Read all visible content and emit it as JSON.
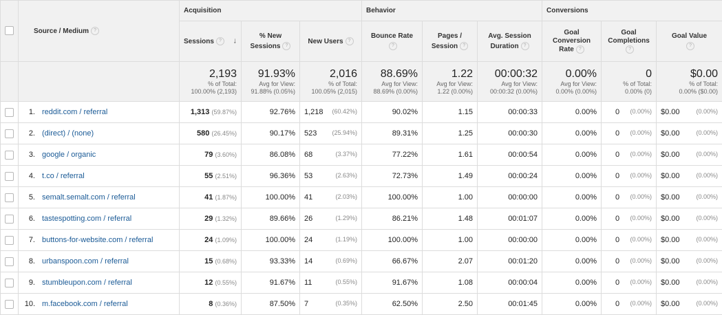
{
  "headers": {
    "source_medium": "Source / Medium",
    "groups": {
      "acquisition": "Acquisition",
      "behavior": "Behavior",
      "conversions": "Conversions"
    },
    "columns": {
      "sessions": "Sessions",
      "pct_new_sessions_1": "% New",
      "pct_new_sessions_2": "Sessions",
      "new_users": "New Users",
      "bounce_rate": "Bounce Rate",
      "pages_session_1": "Pages /",
      "pages_session_2": "Session",
      "avg_duration_1": "Avg. Session",
      "avg_duration_2": "Duration",
      "goal_conv_1": "Goal",
      "goal_conv_2": "Conversion",
      "goal_conv_3": "Rate",
      "goal_comp_1": "Goal",
      "goal_comp_2": "Completions",
      "goal_value": "Goal Value"
    },
    "help_glyph": "?",
    "sort_glyph": "↓"
  },
  "totals": {
    "sessions": {
      "value": "2,193",
      "sub1": "% of Total:",
      "sub2": "100.00% (2,193)"
    },
    "pct_new": {
      "value": "91.93%",
      "sub1": "Avg for View:",
      "sub2": "91.88% (0.05%)"
    },
    "new_users": {
      "value": "2,016",
      "sub1": "% of Total:",
      "sub2": "100.05% (2,015)"
    },
    "bounce": {
      "value": "88.69%",
      "sub1": "Avg for View:",
      "sub2": "88.69% (0.00%)"
    },
    "pages": {
      "value": "1.22",
      "sub1": "Avg for View:",
      "sub2": "1.22 (0.00%)"
    },
    "duration": {
      "value": "00:00:32",
      "sub1": "Avg for View:",
      "sub2": "00:00:32 (0.00%)"
    },
    "conv_rate": {
      "value": "0.00%",
      "sub1": "Avg for View:",
      "sub2": "0.00% (0.00%)"
    },
    "completions": {
      "value": "0",
      "sub1": "% of Total:",
      "sub2": "0.00% (0)"
    },
    "goal_value": {
      "value": "$0.00",
      "sub1": "% of Total:",
      "sub2": "0.00% ($0.00)"
    }
  },
  "rows": [
    {
      "idx": "1.",
      "source": "reddit.com / referral",
      "sessions": "1,313",
      "sessions_pct": "(59.87%)",
      "pct_new": "92.76%",
      "new_users": "1,218",
      "new_users_pct": "(60.42%)",
      "bounce": "90.02%",
      "pages": "1.15",
      "duration": "00:00:33",
      "conv_rate": "0.00%",
      "completions": "0",
      "completions_pct": "(0.00%)",
      "goal_value": "$0.00",
      "goal_value_pct": "(0.00%)"
    },
    {
      "idx": "2.",
      "source": "(direct) / (none)",
      "sessions": "580",
      "sessions_pct": "(26.45%)",
      "pct_new": "90.17%",
      "new_users": "523",
      "new_users_pct": "(25.94%)",
      "bounce": "89.31%",
      "pages": "1.25",
      "duration": "00:00:30",
      "conv_rate": "0.00%",
      "completions": "0",
      "completions_pct": "(0.00%)",
      "goal_value": "$0.00",
      "goal_value_pct": "(0.00%)"
    },
    {
      "idx": "3.",
      "source": "google / organic",
      "sessions": "79",
      "sessions_pct": "(3.60%)",
      "pct_new": "86.08%",
      "new_users": "68",
      "new_users_pct": "(3.37%)",
      "bounce": "77.22%",
      "pages": "1.61",
      "duration": "00:00:54",
      "conv_rate": "0.00%",
      "completions": "0",
      "completions_pct": "(0.00%)",
      "goal_value": "$0.00",
      "goal_value_pct": "(0.00%)"
    },
    {
      "idx": "4.",
      "source": "t.co / referral",
      "sessions": "55",
      "sessions_pct": "(2.51%)",
      "pct_new": "96.36%",
      "new_users": "53",
      "new_users_pct": "(2.63%)",
      "bounce": "72.73%",
      "pages": "1.49",
      "duration": "00:00:24",
      "conv_rate": "0.00%",
      "completions": "0",
      "completions_pct": "(0.00%)",
      "goal_value": "$0.00",
      "goal_value_pct": "(0.00%)"
    },
    {
      "idx": "5.",
      "source": "semalt.semalt.com / referral",
      "sessions": "41",
      "sessions_pct": "(1.87%)",
      "pct_new": "100.00%",
      "new_users": "41",
      "new_users_pct": "(2.03%)",
      "bounce": "100.00%",
      "pages": "1.00",
      "duration": "00:00:00",
      "conv_rate": "0.00%",
      "completions": "0",
      "completions_pct": "(0.00%)",
      "goal_value": "$0.00",
      "goal_value_pct": "(0.00%)"
    },
    {
      "idx": "6.",
      "source": "tastespotting.com / referral",
      "sessions": "29",
      "sessions_pct": "(1.32%)",
      "pct_new": "89.66%",
      "new_users": "26",
      "new_users_pct": "(1.29%)",
      "bounce": "86.21%",
      "pages": "1.48",
      "duration": "00:01:07",
      "conv_rate": "0.00%",
      "completions": "0",
      "completions_pct": "(0.00%)",
      "goal_value": "$0.00",
      "goal_value_pct": "(0.00%)"
    },
    {
      "idx": "7.",
      "source": "buttons-for-website.com / referral",
      "sessions": "24",
      "sessions_pct": "(1.09%)",
      "pct_new": "100.00%",
      "new_users": "24",
      "new_users_pct": "(1.19%)",
      "bounce": "100.00%",
      "pages": "1.00",
      "duration": "00:00:00",
      "conv_rate": "0.00%",
      "completions": "0",
      "completions_pct": "(0.00%)",
      "goal_value": "$0.00",
      "goal_value_pct": "(0.00%)"
    },
    {
      "idx": "8.",
      "source": "urbanspoon.com / referral",
      "sessions": "15",
      "sessions_pct": "(0.68%)",
      "pct_new": "93.33%",
      "new_users": "14",
      "new_users_pct": "(0.69%)",
      "bounce": "66.67%",
      "pages": "2.07",
      "duration": "00:01:20",
      "conv_rate": "0.00%",
      "completions": "0",
      "completions_pct": "(0.00%)",
      "goal_value": "$0.00",
      "goal_value_pct": "(0.00%)"
    },
    {
      "idx": "9.",
      "source": "stumbleupon.com / referral",
      "sessions": "12",
      "sessions_pct": "(0.55%)",
      "pct_new": "91.67%",
      "new_users": "11",
      "new_users_pct": "(0.55%)",
      "bounce": "91.67%",
      "pages": "1.08",
      "duration": "00:00:04",
      "conv_rate": "0.00%",
      "completions": "0",
      "completions_pct": "(0.00%)",
      "goal_value": "$0.00",
      "goal_value_pct": "(0.00%)"
    },
    {
      "idx": "10.",
      "source": "m.facebook.com / referral",
      "sessions": "8",
      "sessions_pct": "(0.36%)",
      "pct_new": "87.50%",
      "new_users": "7",
      "new_users_pct": "(0.35%)",
      "bounce": "62.50%",
      "pages": "2.50",
      "duration": "00:01:45",
      "conv_rate": "0.00%",
      "completions": "0",
      "completions_pct": "(0.00%)",
      "goal_value": "$0.00",
      "goal_value_pct": "(0.00%)"
    }
  ]
}
